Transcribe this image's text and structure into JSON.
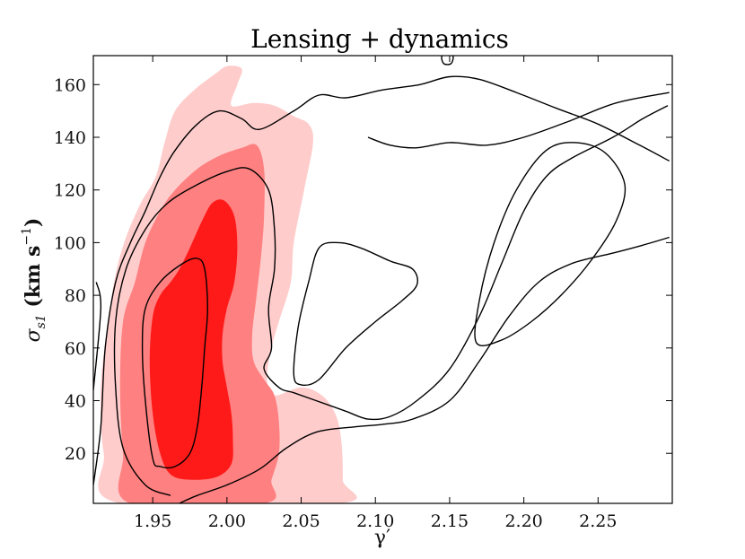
{
  "chart_data": {
    "type": "contour",
    "title": "Lensing + dynamics",
    "xlabel": "γ′",
    "ylabel": "σ_s1 (km s⁻¹)",
    "ylabel_parts": {
      "sigma": "σ",
      "sub": "s1",
      "unit_open": " (km s",
      "exp": "−1",
      "unit_close": ")"
    },
    "xlim": [
      1.91,
      2.3
    ],
    "ylim": [
      1,
      171
    ],
    "x_ticks": [
      1.95,
      2.0,
      2.05,
      2.1,
      2.15,
      2.2,
      2.25
    ],
    "x_tick_labels": [
      "1.95",
      "2.00",
      "2.05",
      "2.10",
      "2.15",
      "2.20",
      "2.25"
    ],
    "y_ticks": [
      20,
      40,
      60,
      80,
      100,
      120,
      140,
      160
    ],
    "y_tick_labels": [
      "20",
      "40",
      "60",
      "80",
      "100",
      "120",
      "140",
      "160"
    ],
    "colors": {
      "fill_outer": "#ffcccc",
      "fill_mid": "#ff8080",
      "fill_inner": "#ff1a1a",
      "line": "#000000"
    },
    "filled_contours": [
      {
        "name": "lensing-dynamics-3sigma",
        "level": "3-sigma",
        "color": "#ffcccc",
        "points": [
          [
            1.928,
            1
          ],
          [
            1.917,
            20
          ],
          [
            1.915,
            45
          ],
          [
            1.92,
            70
          ],
          [
            1.925,
            88
          ],
          [
            1.932,
            102
          ],
          [
            1.942,
            115
          ],
          [
            1.952,
            125
          ],
          [
            1.958,
            138
          ],
          [
            1.965,
            150
          ],
          [
            1.978,
            158
          ],
          [
            1.992,
            164
          ],
          [
            2.0,
            167
          ],
          [
            2.01,
            166
          ],
          [
            2.007,
            160
          ],
          [
            2.003,
            152
          ],
          [
            2.018,
            153
          ],
          [
            2.032,
            152
          ],
          [
            2.045,
            148
          ],
          [
            2.055,
            145
          ],
          [
            2.058,
            138
          ],
          [
            2.052,
            120
          ],
          [
            2.045,
            100
          ],
          [
            2.043,
            85
          ],
          [
            2.035,
            70
          ],
          [
            2.03,
            60
          ],
          [
            2.027,
            48
          ],
          [
            2.032,
            42
          ],
          [
            2.05,
            45
          ],
          [
            2.064,
            42
          ],
          [
            2.073,
            35
          ],
          [
            2.077,
            25
          ],
          [
            2.078,
            10
          ],
          [
            2.076,
            1
          ]
        ]
      },
      {
        "name": "lensing-dynamics-2sigma",
        "level": "2-sigma",
        "color": "#ff8080",
        "points": [
          [
            1.935,
            1
          ],
          [
            1.93,
            20
          ],
          [
            1.928,
            45
          ],
          [
            1.93,
            70
          ],
          [
            1.938,
            85
          ],
          [
            1.945,
            100
          ],
          [
            1.955,
            112
          ],
          [
            1.965,
            120
          ],
          [
            1.98,
            128
          ],
          [
            1.995,
            133
          ],
          [
            2.01,
            136
          ],
          [
            2.02,
            137
          ],
          [
            2.025,
            128
          ],
          [
            2.025,
            110
          ],
          [
            2.023,
            95
          ],
          [
            2.02,
            80
          ],
          [
            2.017,
            65
          ],
          [
            2.018,
            55
          ],
          [
            2.025,
            48
          ],
          [
            2.032,
            42
          ],
          [
            2.035,
            32
          ],
          [
            2.035,
            20
          ],
          [
            2.03,
            10
          ],
          [
            2.025,
            1
          ]
        ]
      },
      {
        "name": "lensing-dynamics-1sigma",
        "level": "1-sigma",
        "color": "#ff1a1a",
        "points": [
          [
            1.962,
            12
          ],
          [
            1.955,
            20
          ],
          [
            1.95,
            35
          ],
          [
            1.948,
            55
          ],
          [
            1.95,
            72
          ],
          [
            1.955,
            80
          ],
          [
            1.962,
            85
          ],
          [
            1.968,
            90
          ],
          [
            1.975,
            98
          ],
          [
            1.983,
            108
          ],
          [
            1.99,
            115
          ],
          [
            1.998,
            116
          ],
          [
            2.005,
            110
          ],
          [
            2.007,
            98
          ],
          [
            2.005,
            85
          ],
          [
            2.0,
            75
          ],
          [
            1.997,
            65
          ],
          [
            1.997,
            55
          ],
          [
            2.0,
            45
          ],
          [
            2.003,
            35
          ],
          [
            2.004,
            25
          ],
          [
            2.003,
            16
          ],
          [
            1.993,
            11
          ],
          [
            1.975,
            10
          ]
        ]
      }
    ],
    "line_contours": [
      {
        "name": "dynamics-1sigma",
        "level": "1-sigma",
        "closed": true,
        "points": [
          [
            1.95,
            18
          ],
          [
            1.945,
            40
          ],
          [
            1.943,
            60
          ],
          [
            1.945,
            75
          ],
          [
            1.955,
            85
          ],
          [
            1.97,
            92
          ],
          [
            1.98,
            94
          ],
          [
            1.985,
            90
          ],
          [
            1.987,
            75
          ],
          [
            1.985,
            60
          ],
          [
            1.983,
            45
          ],
          [
            1.98,
            30
          ],
          [
            1.975,
            20
          ],
          [
            1.965,
            15
          ],
          [
            1.955,
            15
          ]
        ]
      },
      {
        "name": "dynamics-2sigma",
        "level": "2-sigma",
        "closed": false,
        "points": [
          [
            1.962,
            4
          ],
          [
            1.945,
            8
          ],
          [
            1.93,
            22
          ],
          [
            1.925,
            45
          ],
          [
            1.925,
            70
          ],
          [
            1.932,
            90
          ],
          [
            1.945,
            105
          ],
          [
            1.96,
            115
          ],
          [
            1.98,
            122
          ],
          [
            2.0,
            127
          ],
          [
            2.015,
            128
          ],
          [
            2.028,
            120
          ],
          [
            2.032,
            105
          ],
          [
            2.032,
            90
          ],
          [
            2.028,
            75
          ],
          [
            2.03,
            60
          ],
          [
            2.025,
            52
          ],
          [
            2.035,
            45
          ],
          [
            2.045,
            43
          ],
          [
            2.06,
            40
          ],
          [
            2.08,
            36
          ],
          [
            2.095,
            33
          ],
          [
            2.11,
            34
          ],
          [
            2.128,
            40
          ],
          [
            2.15,
            52
          ],
          [
            2.17,
            72
          ],
          [
            2.185,
            92
          ],
          [
            2.2,
            112
          ],
          [
            2.215,
            125
          ],
          [
            2.232,
            132
          ],
          [
            2.26,
            140
          ],
          [
            2.28,
            147
          ],
          [
            2.297,
            152
          ]
        ]
      },
      {
        "name": "dynamics-3sigma",
        "level": "3-sigma",
        "closed": false,
        "points": [
          [
            1.91,
            8
          ],
          [
            1.915,
            30
          ],
          [
            1.918,
            60
          ],
          [
            1.925,
            85
          ],
          [
            1.935,
            100
          ],
          [
            1.945,
            112
          ],
          [
            1.955,
            125
          ],
          [
            1.965,
            135
          ],
          [
            1.98,
            145
          ],
          [
            1.995,
            150
          ],
          [
            2.01,
            147
          ],
          [
            2.022,
            143
          ],
          [
            2.045,
            150
          ],
          [
            2.062,
            156
          ],
          [
            2.08,
            155
          ],
          [
            2.105,
            158
          ],
          [
            2.13,
            160
          ],
          [
            2.15,
            163
          ],
          [
            2.17,
            162
          ],
          [
            2.195,
            157
          ],
          [
            2.222,
            151
          ],
          [
            2.25,
            145
          ],
          [
            2.278,
            137
          ],
          [
            2.298,
            131
          ]
        ]
      },
      {
        "name": "dynamics-3sigma-lower",
        "level": "3-sigma",
        "closed": false,
        "points": [
          [
            1.968,
            1
          ],
          [
            1.98,
            4
          ],
          [
            2.0,
            8
          ],
          [
            2.022,
            14
          ],
          [
            2.04,
            22
          ],
          [
            2.06,
            28
          ],
          [
            2.085,
            30
          ],
          [
            2.105,
            31
          ],
          [
            2.125,
            33
          ],
          [
            2.15,
            40
          ],
          [
            2.17,
            55
          ],
          [
            2.19,
            72
          ],
          [
            2.21,
            85
          ],
          [
            2.232,
            92
          ],
          [
            2.26,
            96
          ],
          [
            2.28,
            99
          ],
          [
            2.298,
            102
          ]
        ]
      },
      {
        "name": "dynamics-inner-left-loop",
        "level": "2-sigma",
        "closed": true,
        "points": [
          [
            2.045,
            50
          ],
          [
            2.048,
            68
          ],
          [
            2.055,
            85
          ],
          [
            2.062,
            98
          ],
          [
            2.075,
            100
          ],
          [
            2.09,
            98
          ],
          [
            2.11,
            93
          ],
          [
            2.125,
            90
          ],
          [
            2.128,
            84
          ],
          [
            2.118,
            78
          ],
          [
            2.1,
            70
          ],
          [
            2.08,
            60
          ],
          [
            2.062,
            48
          ],
          [
            2.05,
            46
          ]
        ]
      },
      {
        "name": "dynamics-inner-right-loop",
        "level": "1-sigma",
        "closed": true,
        "points": [
          [
            2.168,
            62
          ],
          [
            2.17,
            78
          ],
          [
            2.18,
            100
          ],
          [
            2.195,
            120
          ],
          [
            2.215,
            135
          ],
          [
            2.235,
            138
          ],
          [
            2.255,
            134
          ],
          [
            2.268,
            122
          ],
          [
            2.262,
            108
          ],
          [
            2.245,
            93
          ],
          [
            2.225,
            80
          ],
          [
            2.205,
            70
          ],
          [
            2.185,
            63
          ]
        ]
      },
      {
        "name": "dynamics-top-blip",
        "level": "3-sigma",
        "closed": true,
        "points": [
          [
            2.146,
            168
          ],
          [
            2.145,
            171
          ],
          [
            2.152,
            171
          ],
          [
            2.151,
            168
          ]
        ]
      },
      {
        "name": "dynamics-left-edge",
        "level": "3-sigma",
        "closed": false,
        "points": [
          [
            1.91,
            44
          ],
          [
            1.915,
            75
          ],
          [
            1.912,
            85
          ]
        ]
      },
      {
        "name": "dynamics-upper-right-hook",
        "level": "2-sigma",
        "closed": false,
        "points": [
          [
            2.095,
            140
          ],
          [
            2.11,
            137
          ],
          [
            2.128,
            136
          ],
          [
            2.15,
            138
          ],
          [
            2.175,
            137
          ],
          [
            2.2,
            140
          ],
          [
            2.23,
            146
          ],
          [
            2.262,
            153
          ],
          [
            2.298,
            157
          ]
        ]
      }
    ]
  }
}
